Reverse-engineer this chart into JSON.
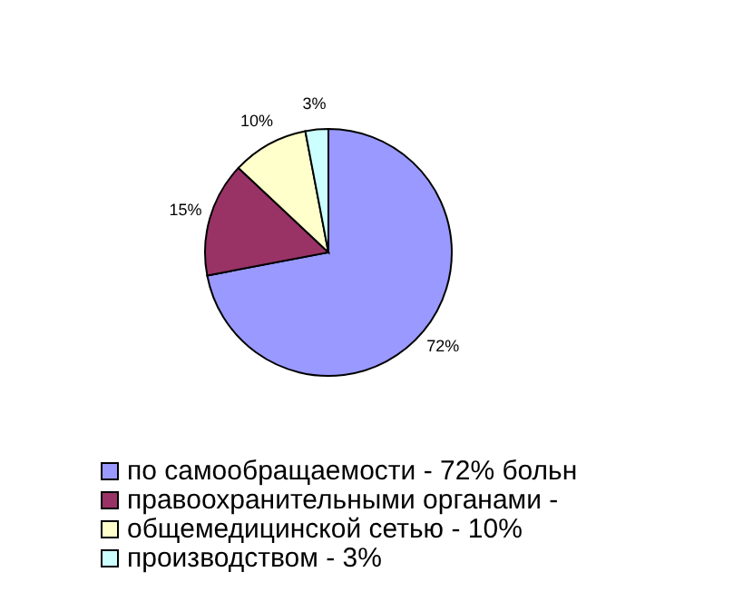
{
  "chart_data": {
    "type": "pie",
    "categories": [
      "по самообращаемости - 72% больн",
      "правоохранительными органами -",
      "общемедицинской сетью - 10%",
      "производством - 3%"
    ],
    "values": [
      72,
      15,
      10,
      3
    ],
    "colors": [
      "#9999ff",
      "#993366",
      "#ffffcc",
      "#ccffff"
    ],
    "value_labels": [
      "72%",
      "15%",
      "10%",
      "3%"
    ],
    "legend": "bottom"
  }
}
